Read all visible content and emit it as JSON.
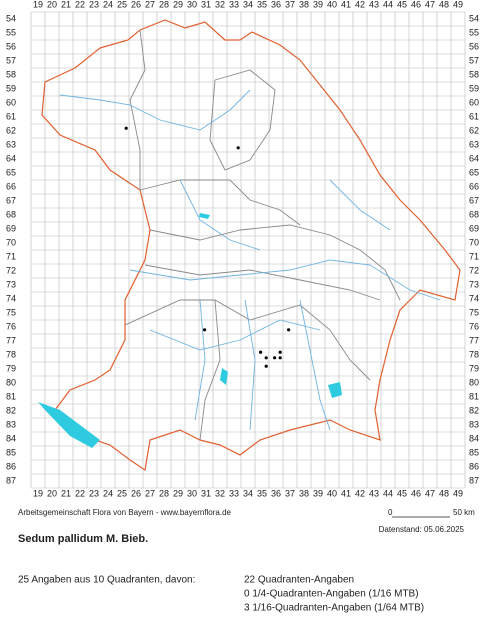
{
  "map": {
    "columns": [
      19,
      20,
      21,
      22,
      23,
      24,
      25,
      26,
      27,
      28,
      29,
      30,
      31,
      32,
      33,
      34,
      35,
      36,
      37,
      38,
      39,
      40,
      41,
      42,
      43,
      44,
      45,
      46,
      47,
      48,
      49
    ],
    "rows": [
      54,
      55,
      56,
      57,
      58,
      59,
      60,
      61,
      62,
      63,
      64,
      65,
      66,
      67,
      68,
      69,
      70,
      71,
      72,
      73,
      74,
      75,
      76,
      77,
      78,
      79,
      80,
      81,
      82,
      83,
      84,
      85,
      86,
      87
    ],
    "points": [
      {
        "x": 25.3,
        "y": 61.8
      },
      {
        "x": 33.3,
        "y": 63.2
      },
      {
        "x": 30.9,
        "y": 76.2
      },
      {
        "x": 36.9,
        "y": 76.2
      },
      {
        "x": 34.9,
        "y": 77.8
      },
      {
        "x": 35.3,
        "y": 78.2
      },
      {
        "x": 35.9,
        "y": 78.2
      },
      {
        "x": 36.3,
        "y": 77.8
      },
      {
        "x": 36.3,
        "y": 78.2
      },
      {
        "x": 35.3,
        "y": 78.8
      }
    ]
  },
  "footer": {
    "credit": "Arbeitsgemeinschaft Flora von Bayern - www.bayernflora.de",
    "scale_start": "0",
    "scale_end": "50 km",
    "date": "Datenstand: 05.06.2025"
  },
  "species": "Sedum pallidum M. Bieb.",
  "summary": {
    "total": "25 Angaben aus 10 Quadranten, davon:",
    "lines": [
      "22 Quadranten-Angaben",
      "0 1/4-Quadranten-Angaben (1/16 MTB)",
      "3 1/16-Quadranten-Angaben (1/64 MTB)"
    ]
  }
}
